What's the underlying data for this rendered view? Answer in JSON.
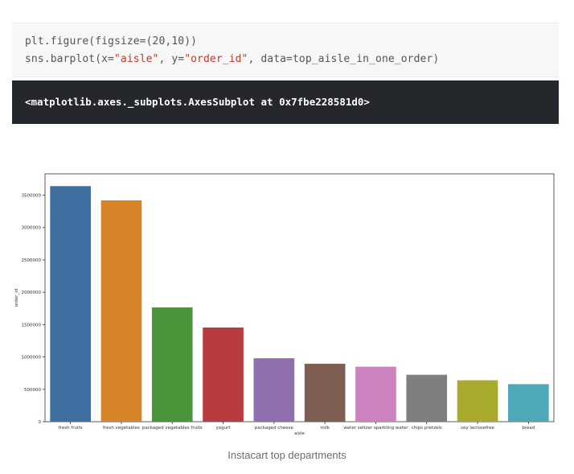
{
  "code_cell": {
    "line1": {
      "fn": "plt.figure(figsize=(",
      "num1": "20",
      "sep": ",",
      "num2": "10",
      "end": "))"
    },
    "line2": {
      "prefix": "sns.barplot(x=",
      "x_str": "\"aisle\"",
      "mid": ", y=",
      "y_str": "\"order_id\"",
      "suffix": ", data=top_aisle_in_one_order)"
    }
  },
  "output_cell": {
    "text": "<matplotlib.axes._subplots.AxesSubplot at 0x7fbe228581d0>"
  },
  "chart_data": {
    "type": "bar",
    "xlabel": "aisle",
    "ylabel": "order_id",
    "ylim": [
      0,
      3830000
    ],
    "yticks": [
      0,
      500000,
      1000000,
      1500000,
      2000000,
      2500000,
      3000000,
      3500000
    ],
    "yticklabels": [
      "0",
      "500000",
      "1000000",
      "1500000",
      "2000000",
      "2500000",
      "3000000",
      "3500000"
    ],
    "categories": [
      "fresh fruits",
      "fresh vegetables",
      "packaged vegetables fruits",
      "yogurt",
      "packaged cheese",
      "milk",
      "water seltzer sparkling water",
      "chips pretzels",
      "soy lactosefree",
      "bread"
    ],
    "values": [
      3640000,
      3420000,
      1765000,
      1455000,
      980000,
      895000,
      850000,
      725000,
      640000,
      580000
    ],
    "colors": [
      "#3f6fa1",
      "#d68427",
      "#4c943a",
      "#b83c3e",
      "#8f6fad",
      "#7e5e52",
      "#cc82bf",
      "#7f7f7f",
      "#a9ab2e",
      "#4fa8b8"
    ],
    "grid": false,
    "legend": "none"
  },
  "caption": {
    "text": "Instacart top departments"
  }
}
